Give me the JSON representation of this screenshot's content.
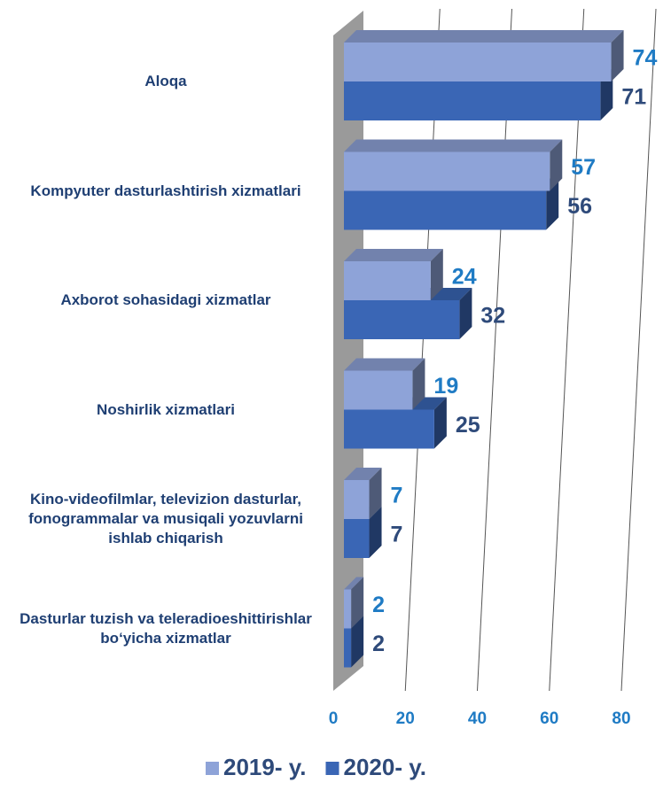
{
  "chart_data": {
    "type": "bar",
    "orientation": "horizontal",
    "categories": [
      "Aloqa",
      "Kompyuter dasturlashtirish xizmatlari",
      "Axborot sohasidagi xizmatlar",
      "Noshirlik xizmatlari",
      "Kino-videofilmlar, televizion dasturlar, fonogrammalar va musiqali yozuvlarni ishlab chiqarish",
      "Dasturlar tuzish va teleradioeshittirishlar bo‘yicha xizmatlar"
    ],
    "series": [
      {
        "name": "2019- y.",
        "color": "#8ea3d8",
        "values": [
          74,
          57,
          24,
          19,
          7,
          2
        ]
      },
      {
        "name": "2020- y.",
        "color": "#3a66b5",
        "values": [
          71,
          56,
          32,
          25,
          7,
          2
        ]
      }
    ],
    "xlim": [
      0,
      80
    ],
    "xticks": [
      0,
      20,
      40,
      60,
      80
    ],
    "grid": true,
    "legend": "bottom"
  }
}
